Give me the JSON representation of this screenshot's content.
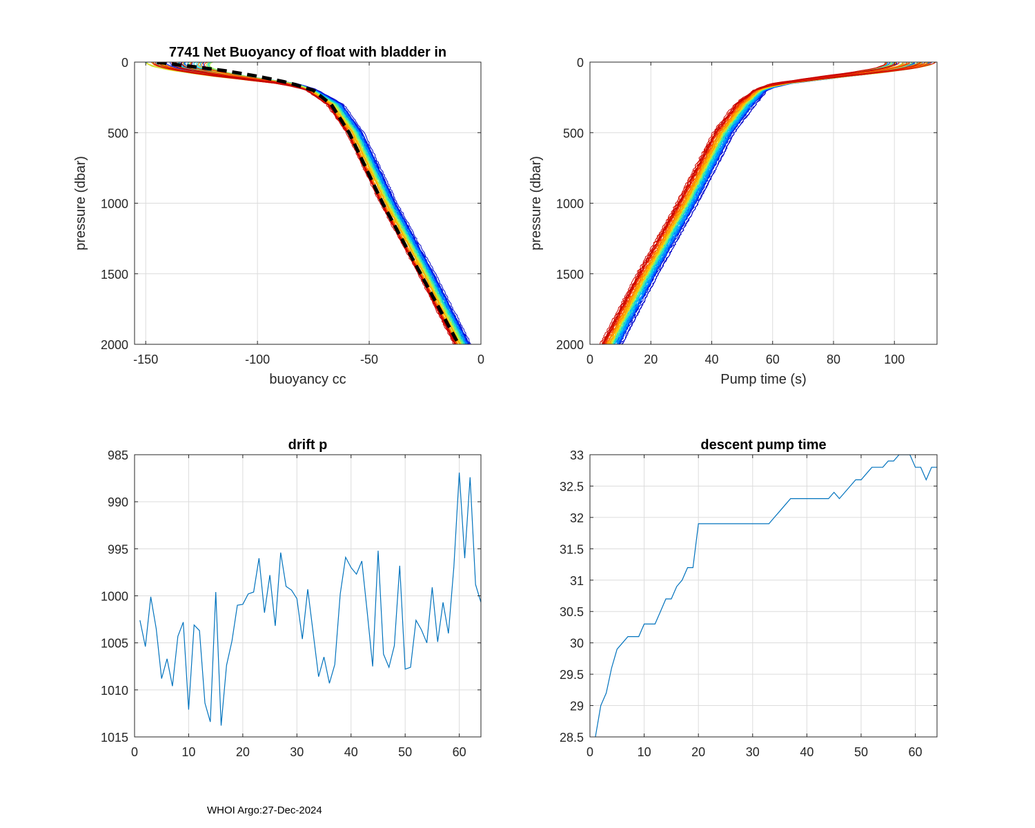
{
  "footer": "WHOI Argo:27-Dec-2024",
  "colors": {
    "line": "#0072BD",
    "grid": "#dcdcdc",
    "axis": "#262626",
    "mean": "#000000",
    "profiles": [
      "#0000c8",
      "#0018e0",
      "#0040ff",
      "#0070ff",
      "#00a0ff",
      "#00c8f0",
      "#20e0c0",
      "#70f080",
      "#b0f050",
      "#e0e020",
      "#ffc000",
      "#ff9000",
      "#ff6000",
      "#f03000",
      "#c80000"
    ]
  },
  "chart_data": [
    {
      "id": "buoyancy",
      "type": "line",
      "title": "7741 Net Buoyancy of float with bladder in",
      "xlabel": "buoyancy cc",
      "ylabel": "pressure (dbar)",
      "xlim": [
        -155,
        0
      ],
      "ylim": [
        0,
        2000
      ],
      "y_reversed": true,
      "xticks": [
        -150,
        -100,
        -50,
        0
      ],
      "yticks": [
        0,
        500,
        1000,
        1500,
        2000
      ],
      "profile_count": 64,
      "profile_shape": {
        "p": [
          0,
          100,
          150,
          200,
          300,
          500,
          1000,
          1500,
          2000
        ],
        "x": [
          -150,
          -110,
          -88,
          -76,
          -66,
          -57,
          -42,
          -25,
          -9
        ]
      },
      "profile_spread": {
        "surface_x_range": [
          -152,
          -120
        ],
        "deep_x_offset": [
          -3,
          4
        ]
      },
      "mean_profile": {
        "p": [
          0,
          30,
          60,
          100,
          150,
          200,
          300,
          500,
          1000,
          1500,
          2000
        ],
        "x": [
          -145,
          -130,
          -115,
          -100,
          -85,
          -75,
          -67,
          -59,
          -44,
          -27,
          -10
        ]
      }
    },
    {
      "id": "pump",
      "type": "line",
      "title": "",
      "xlabel": "Pump time (s)",
      "ylabel": "pressure (dbar)",
      "xlim": [
        0,
        114
      ],
      "ylim": [
        0,
        2000
      ],
      "y_reversed": true,
      "xticks": [
        0,
        20,
        40,
        60,
        80,
        100
      ],
      "yticks": [
        0,
        500,
        1000,
        1500,
        2000
      ],
      "profile_count": 64,
      "profile_shape": {
        "p": [
          0,
          20,
          50,
          100,
          150,
          200,
          300,
          500,
          1000,
          1500,
          2000
        ],
        "x": [
          110,
          102,
          92,
          75,
          62,
          56,
          51,
          44,
          32,
          19,
          7
        ]
      },
      "profile_spread": {
        "surface_x_range": [
          96,
          114
        ],
        "deep_x_offset": [
          -3,
          3
        ]
      }
    },
    {
      "id": "drift",
      "type": "line",
      "title": "drift p",
      "xlabel": "",
      "ylabel": "",
      "xlim": [
        0,
        64
      ],
      "ylim": [
        985,
        1015
      ],
      "y_reversed": true,
      "xticks": [
        0,
        10,
        20,
        30,
        40,
        50,
        60
      ],
      "yticks": [
        985,
        990,
        995,
        1000,
        1005,
        1010,
        1015
      ],
      "x": [
        1,
        2,
        3,
        4,
        5,
        6,
        7,
        8,
        9,
        10,
        11,
        12,
        13,
        14,
        15,
        16,
        17,
        18,
        19,
        20,
        21,
        22,
        23,
        24,
        25,
        26,
        27,
        28,
        29,
        30,
        31,
        32,
        33,
        34,
        35,
        36,
        37,
        38,
        39,
        40,
        41,
        42,
        43,
        44,
        45,
        46,
        47,
        48,
        49,
        50,
        51,
        52,
        53,
        54,
        55,
        56,
        57,
        58,
        59,
        60,
        61,
        62,
        63,
        64
      ],
      "y": [
        1002.6,
        1005.4,
        1000.1,
        1003.5,
        1008.8,
        1006.7,
        1009.6,
        1004.3,
        1002.8,
        1012.1,
        1003.1,
        1003.7,
        1011.4,
        1013.4,
        999.6,
        1013.8,
        1007.4,
        1004.8,
        1001.0,
        1000.9,
        999.8,
        999.6,
        996.0,
        1001.8,
        997.8,
        1003.2,
        995.4,
        999.0,
        999.4,
        1000.3,
        1004.6,
        999.3,
        1003.9,
        1008.6,
        1006.5,
        1009.3,
        1007.3,
        999.8,
        995.9,
        997.0,
        997.7,
        996.3,
        1001.8,
        1007.5,
        995.2,
        1006.2,
        1007.6,
        1005.3,
        996.8,
        1007.8,
        1007.6,
        1002.6,
        1003.6,
        1005.0,
        999.1,
        1004.9,
        1000.7,
        1004.0,
        996.9,
        986.9,
        996.0,
        987.4,
        998.8,
        1000.7
      ]
    },
    {
      "id": "descent",
      "type": "line",
      "title": "descent pump time",
      "xlabel": "",
      "ylabel": "",
      "xlim": [
        0,
        64
      ],
      "ylim": [
        28.5,
        33
      ],
      "y_reversed": false,
      "xticks": [
        0,
        10,
        20,
        30,
        40,
        50,
        60
      ],
      "yticks": [
        28.5,
        29,
        29.5,
        30,
        30.5,
        31,
        31.5,
        32,
        32.5,
        33
      ],
      "x": [
        1,
        2,
        3,
        4,
        5,
        6,
        7,
        8,
        9,
        10,
        11,
        12,
        13,
        14,
        15,
        16,
        17,
        18,
        19,
        20,
        21,
        22,
        23,
        24,
        25,
        26,
        27,
        28,
        29,
        30,
        31,
        32,
        33,
        34,
        35,
        36,
        37,
        38,
        39,
        40,
        41,
        42,
        43,
        44,
        45,
        46,
        47,
        48,
        49,
        50,
        51,
        52,
        53,
        54,
        55,
        56,
        57,
        58,
        59,
        60,
        61,
        62,
        63,
        64
      ],
      "y": [
        28.5,
        29.0,
        29.2,
        29.6,
        29.9,
        30.0,
        30.1,
        30.1,
        30.1,
        30.3,
        30.3,
        30.3,
        30.5,
        30.7,
        30.7,
        30.9,
        31.0,
        31.2,
        31.2,
        31.9,
        31.9,
        31.9,
        31.9,
        31.9,
        31.9,
        31.9,
        31.9,
        31.9,
        31.9,
        31.9,
        31.9,
        31.9,
        31.9,
        32.0,
        32.1,
        32.2,
        32.3,
        32.3,
        32.3,
        32.3,
        32.3,
        32.3,
        32.3,
        32.3,
        32.4,
        32.3,
        32.4,
        32.5,
        32.6,
        32.6,
        32.7,
        32.8,
        32.8,
        32.8,
        32.9,
        32.9,
        33.0,
        33.0,
        33.0,
        32.8,
        32.8,
        32.6,
        32.8,
        32.8
      ]
    }
  ]
}
